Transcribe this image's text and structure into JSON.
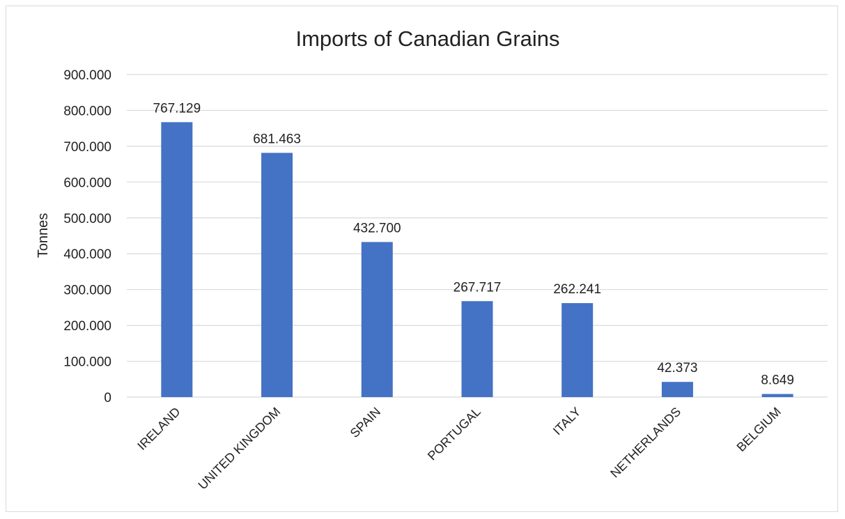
{
  "chart_data": {
    "type": "bar",
    "title": "Imports of Canadian Grains",
    "xlabel": "",
    "ylabel": "Tonnes",
    "categories": [
      "IRELAND",
      "UNITED KINGDOM",
      "SPAIN",
      "PORTUGAL",
      "ITALY",
      "NETHERLANDS",
      "BELGIUM"
    ],
    "values": [
      767129,
      681463,
      432700,
      267717,
      262241,
      42373,
      8649
    ],
    "value_labels": [
      "767.129",
      "681.463",
      "432.700",
      "267.717",
      "262.241",
      "42.373",
      "8.649"
    ],
    "ylim": [
      0,
      900000
    ],
    "y_ticks": [
      0,
      100000,
      200000,
      300000,
      400000,
      500000,
      600000,
      700000,
      800000,
      900000
    ],
    "y_tick_labels": [
      "0",
      "100.000",
      "200.000",
      "300.000",
      "400.000",
      "500.000",
      "600.000",
      "700.000",
      "800.000",
      "900.000"
    ],
    "grid": true,
    "legend": "none",
    "colors": {
      "bar": "#4472c4",
      "grid": "#d9d9d9",
      "text": "#222222"
    }
  }
}
